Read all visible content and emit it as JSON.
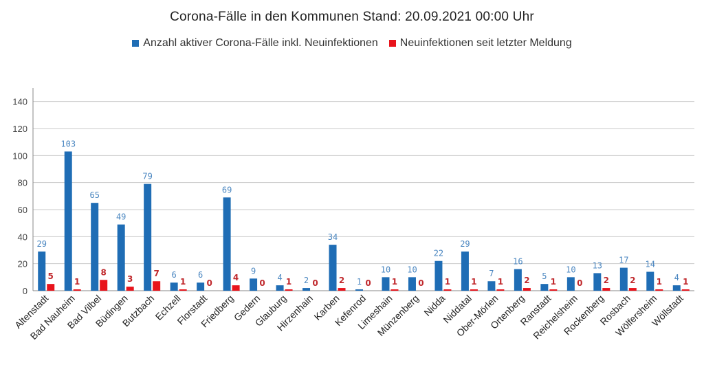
{
  "chart_data": {
    "type": "bar",
    "title": "Corona-Fälle in den Kommunen Stand: 20.09.2021 00:00 Uhr",
    "xlabel": "",
    "ylabel": "",
    "ylim": [
      0,
      150
    ],
    "yticks": [
      0,
      20,
      40,
      60,
      80,
      100,
      120,
      140
    ],
    "grid": true,
    "legend_position": "top",
    "colors": {
      "series_a": "#1f6db5",
      "series_b": "#e8141c",
      "label_a": "#4a86c0",
      "label_b": "#c0282c"
    },
    "categories": [
      "Altenstadt",
      "Bad Nauheim",
      "Bad Vilbel",
      "Büdingen",
      "Butzbach",
      "Echzell",
      "Florstadt",
      "Friedberg",
      "Gedern",
      "Glauburg",
      "Hirzenhain",
      "Karben",
      "Kefenrod",
      "Limeshain",
      "Münzenberg",
      "Nidda",
      "Niddatal",
      "Ober-Mörlen",
      "Ortenberg",
      "Ranstadt",
      "Reichelsheim",
      "Rockenberg",
      "Rosbach",
      "Wölfersheim",
      "Wöllstadt"
    ],
    "series": [
      {
        "name": "Anzahl aktiver Corona-Fälle inkl. Neuinfektionen",
        "values": [
          29,
          103,
          65,
          49,
          79,
          6,
          6,
          69,
          9,
          4,
          2,
          34,
          1,
          10,
          10,
          22,
          29,
          7,
          16,
          5,
          10,
          13,
          17,
          14,
          4
        ]
      },
      {
        "name": "Neuinfektionen seit letzter Meldung",
        "values": [
          5,
          1,
          8,
          3,
          7,
          1,
          0,
          4,
          0,
          1,
          0,
          2,
          0,
          1,
          0,
          1,
          1,
          1,
          2,
          1,
          0,
          2,
          2,
          1,
          1
        ]
      }
    ]
  }
}
